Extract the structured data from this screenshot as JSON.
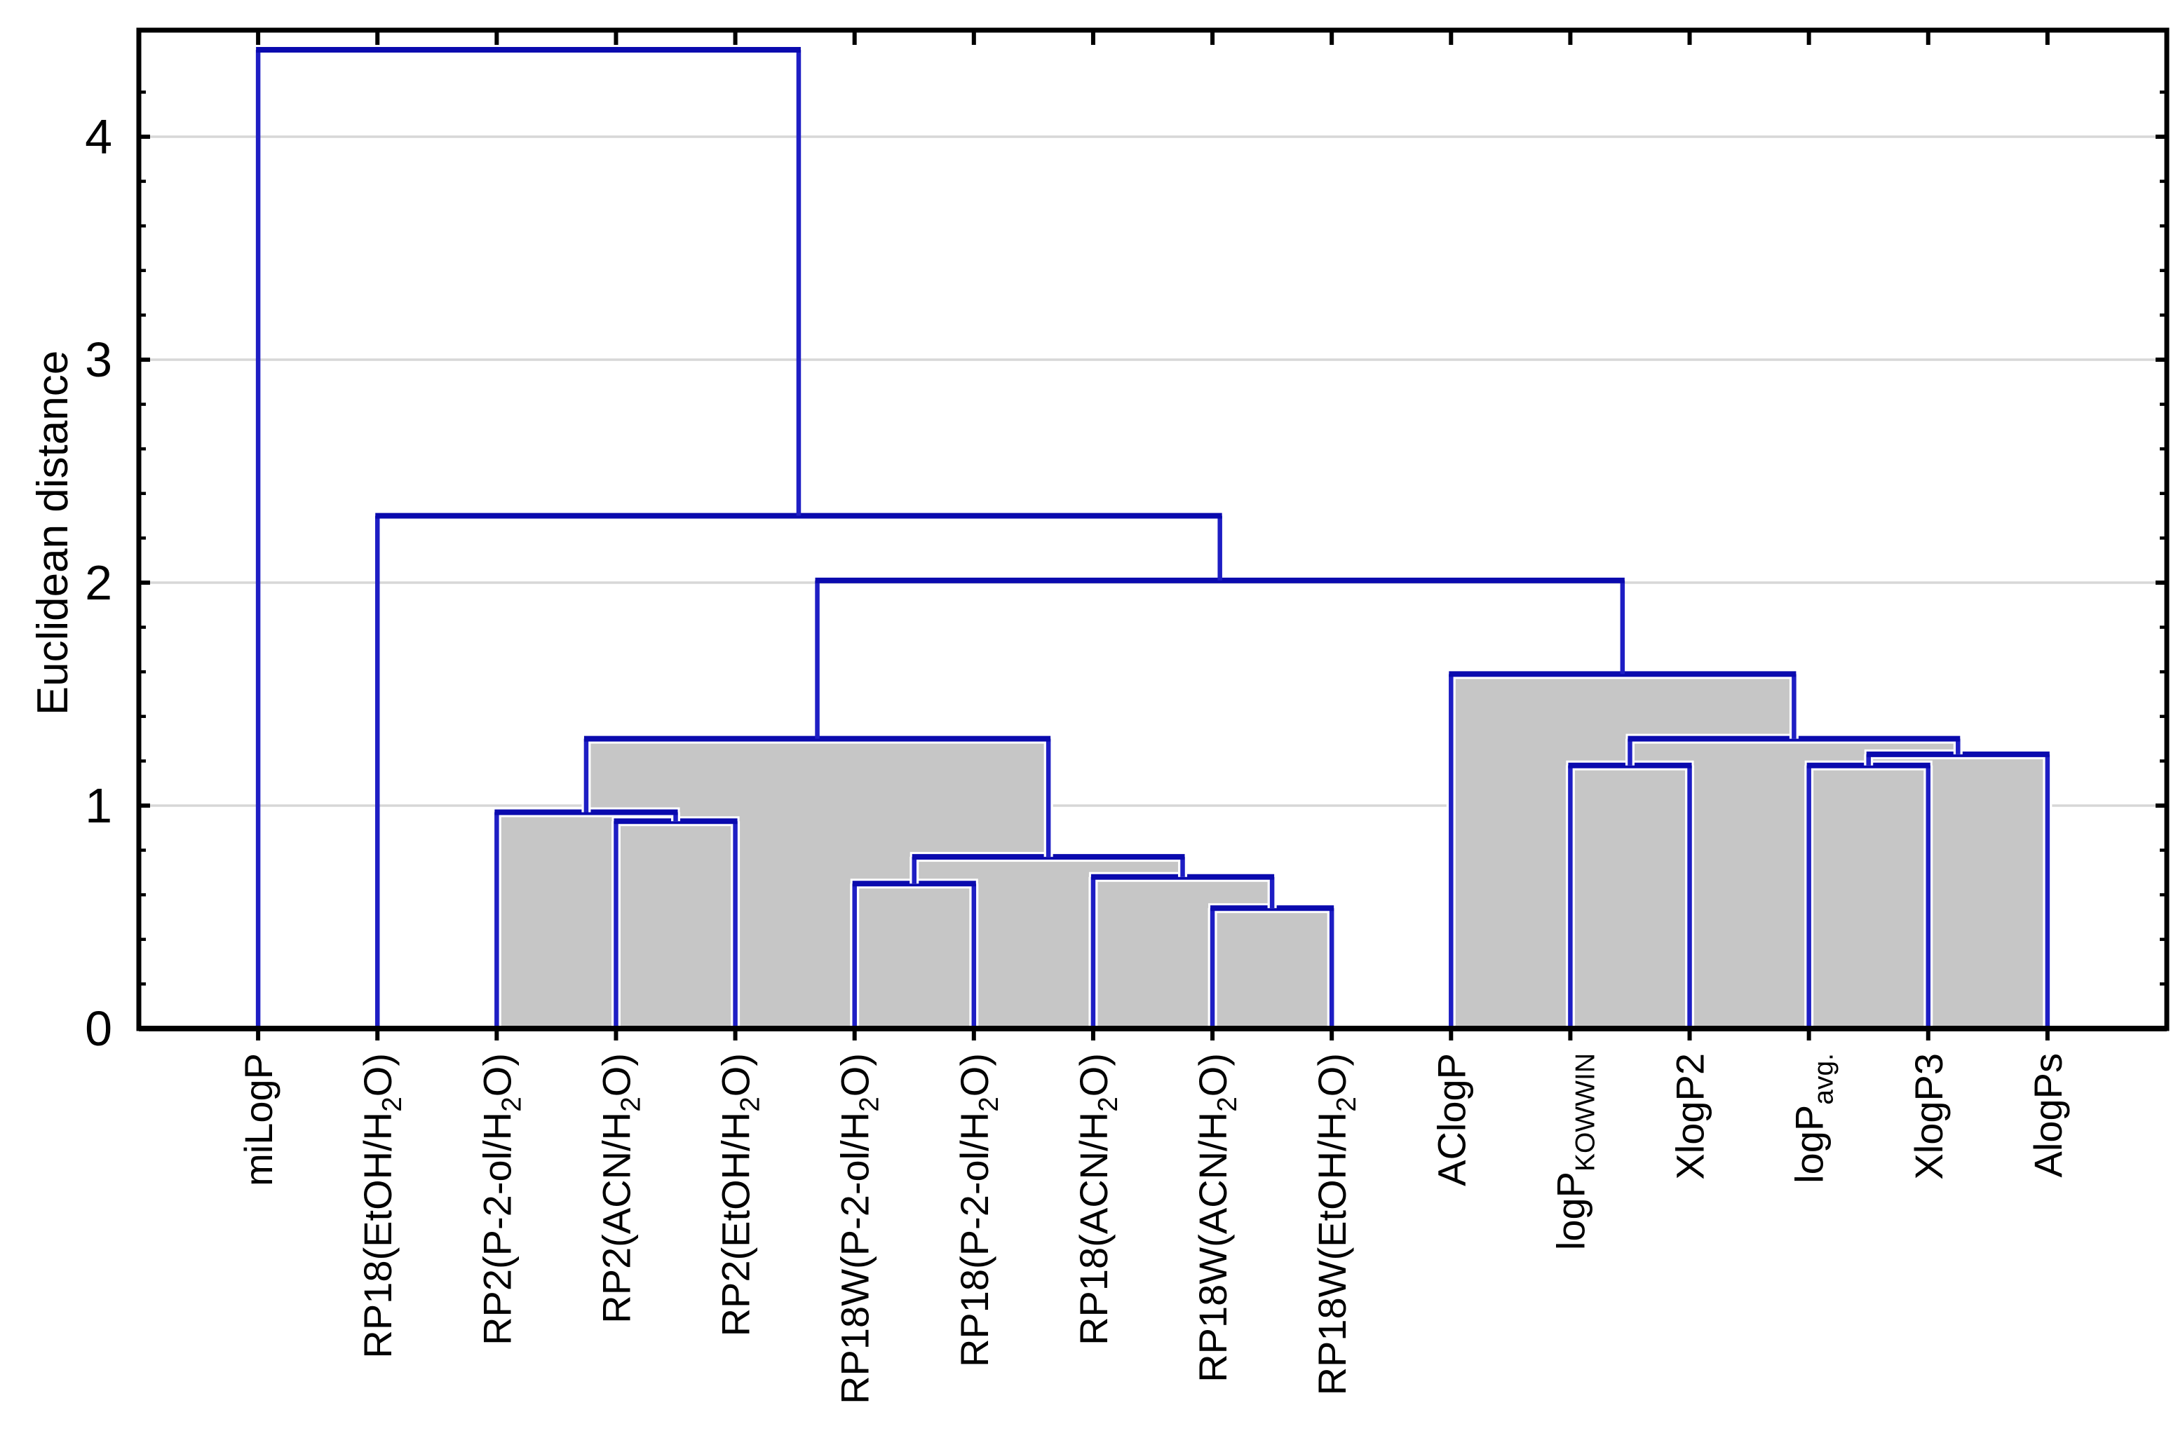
{
  "chart_data": {
    "type": "dendrogram",
    "title": "",
    "ylabel": "Euclidean distance",
    "xlabel": "",
    "y_ticks": [
      0,
      1,
      2,
      3,
      4
    ],
    "y_minor_step": 0.2,
    "y_minor_max": 4.2,
    "ylim": [
      0,
      4.48
    ],
    "grid": "horizontal-major-only",
    "legend": "none",
    "orientation": "top-down",
    "leaves": [
      {
        "name": "miLogP",
        "segments": [
          {
            "t": "miLogP"
          }
        ]
      },
      {
        "name": "RP18(EtOH/H2O)",
        "segments": [
          {
            "t": "RP18(EtOH/H"
          },
          {
            "t": "2",
            "sub": true
          },
          {
            "t": "O)"
          }
        ]
      },
      {
        "name": "RP2(P-2-ol/H2O)",
        "segments": [
          {
            "t": "RP2(P-2-ol/H"
          },
          {
            "t": "2",
            "sub": true
          },
          {
            "t": "O)"
          }
        ]
      },
      {
        "name": "RP2(ACN/H2O)",
        "segments": [
          {
            "t": "RP2(ACN/H"
          },
          {
            "t": "2",
            "sub": true
          },
          {
            "t": "O)"
          }
        ]
      },
      {
        "name": "RP2(EtOH/H2O)",
        "segments": [
          {
            "t": "RP2(EtOH/H"
          },
          {
            "t": "2",
            "sub": true
          },
          {
            "t": "O)"
          }
        ]
      },
      {
        "name": "RP18W(P-2-ol/H2O)",
        "segments": [
          {
            "t": "RP18W(P-2-ol/H"
          },
          {
            "t": "2",
            "sub": true
          },
          {
            "t": "O)"
          }
        ]
      },
      {
        "name": "RP18(P-2-ol/H2O)",
        "segments": [
          {
            "t": "RP18(P-2-ol/H"
          },
          {
            "t": "2",
            "sub": true
          },
          {
            "t": "O)"
          }
        ]
      },
      {
        "name": "RP18(ACN/H2O)",
        "segments": [
          {
            "t": "RP18(ACN/H"
          },
          {
            "t": "2",
            "sub": true
          },
          {
            "t": "O)"
          }
        ]
      },
      {
        "name": "RP18W(ACN/H2O)",
        "segments": [
          {
            "t": "RP18W(ACN/H"
          },
          {
            "t": "2",
            "sub": true
          },
          {
            "t": "O)"
          }
        ]
      },
      {
        "name": "RP18W(EtOH/H2O)",
        "segments": [
          {
            "t": "RP18W(EtOH/H"
          },
          {
            "t": "2",
            "sub": true
          },
          {
            "t": "O)"
          }
        ]
      },
      {
        "name": "AClogP",
        "segments": [
          {
            "t": "AClogP"
          }
        ]
      },
      {
        "name": "logP_KOWWIN",
        "segments": [
          {
            "t": "logP"
          },
          {
            "t": "KOWWIN",
            "sub": true
          }
        ]
      },
      {
        "name": "XlogP2",
        "segments": [
          {
            "t": "XlogP2"
          }
        ]
      },
      {
        "name": "logP_avg.",
        "segments": [
          {
            "t": "logP"
          },
          {
            "t": "avg.",
            "sub": true
          }
        ]
      },
      {
        "name": "XlogP3",
        "segments": [
          {
            "t": "XlogP3"
          }
        ]
      },
      {
        "name": "AlogPs",
        "segments": [
          {
            "t": "AlogPs"
          }
        ]
      }
    ],
    "merges": [
      {
        "id": "m0",
        "children": [
          3,
          4
        ],
        "height": 0.93,
        "filled": true
      },
      {
        "id": "m1",
        "children": [
          2,
          "m0"
        ],
        "height": 0.97,
        "filled": true
      },
      {
        "id": "m2",
        "children": [
          5,
          6
        ],
        "height": 0.65,
        "filled": true
      },
      {
        "id": "m3",
        "children": [
          8,
          9
        ],
        "height": 0.54,
        "filled": true
      },
      {
        "id": "m4",
        "children": [
          7,
          "m3"
        ],
        "height": 0.68,
        "filled": true
      },
      {
        "id": "m5",
        "children": [
          "m2",
          "m4"
        ],
        "height": 0.77,
        "filled": true
      },
      {
        "id": "m6",
        "children": [
          "m1",
          "m5"
        ],
        "height": 1.3,
        "filled": true
      },
      {
        "id": "m7",
        "children": [
          11,
          12
        ],
        "height": 1.18,
        "filled": true
      },
      {
        "id": "m8",
        "children": [
          13,
          14
        ],
        "height": 1.18,
        "filled": true
      },
      {
        "id": "m9",
        "children": [
          "m8",
          15
        ],
        "height": 1.23,
        "filled": true
      },
      {
        "id": "m10",
        "children": [
          "m7",
          "m9"
        ],
        "height": 1.3,
        "filled": true
      },
      {
        "id": "m11",
        "children": [
          10,
          "m10"
        ],
        "height": 1.59,
        "filled": true
      },
      {
        "id": "m12",
        "children": [
          "m6",
          "m11"
        ],
        "height": 2.01,
        "filled": false
      },
      {
        "id": "m13",
        "children": [
          1,
          "m12"
        ],
        "height": 2.3,
        "filled": false
      },
      {
        "id": "m14",
        "children": [
          0,
          "m13"
        ],
        "height": 4.39,
        "filled": false
      }
    ],
    "colors": {
      "background": "#ffffff",
      "frame": "#000000",
      "gridline": "#d7d7d7",
      "cluster_fill": "#c6c6c6",
      "bar_blue": "#0a0aae",
      "branch_blue": "#1e1ec4",
      "text": "#000000"
    }
  }
}
